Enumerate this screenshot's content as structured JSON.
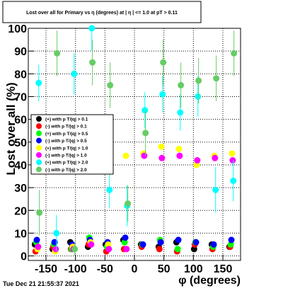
{
  "chart_data": {
    "type": "scatter",
    "title": "Lost over all for Primary vs η (degrees) at | η | <= 1.0 at pT > 0.11",
    "x_label": "φ (degrees)",
    "y_label": "Lost over all (%)",
    "timestamp": "Tue Dec 21 21:55:37 2021",
    "xlim": [
      -180,
      180
    ],
    "ylim": [
      -2,
      100
    ],
    "xticks": [
      -150,
      -100,
      -50,
      0,
      50,
      100,
      150
    ],
    "yticks": [
      0,
      10,
      20,
      30,
      40,
      50,
      60,
      70,
      80,
      90,
      100
    ],
    "grid": true,
    "legend": "left",
    "x": [
      -165,
      -135,
      -105,
      -75,
      -45,
      -15,
      15,
      45,
      75,
      105,
      135,
      165
    ],
    "series": [
      {
        "name": "(+) with p T/|q| > 0.1",
        "color": "#000000",
        "values": [
          5,
          3,
          6,
          4,
          5,
          7,
          5,
          4,
          6,
          3,
          5,
          4
        ]
      },
      {
        "name": "(-) with p T/|q| > 0.1",
        "color": "#ff0000",
        "values": [
          2,
          4,
          3,
          5,
          2,
          3,
          4,
          3,
          2,
          5,
          3,
          4
        ]
      },
      {
        "name": "(+) with p T/|q| > 0.5",
        "color": "#00ff00",
        "values": [
          6,
          5,
          3,
          8,
          4,
          6,
          5,
          7,
          3,
          6,
          4,
          5
        ]
      },
      {
        "name": "(-) with p T/|q| > 0.5",
        "color": "#0000ff",
        "values": [
          7,
          6,
          5,
          7,
          6,
          8,
          5,
          6,
          7,
          6,
          5,
          7
        ]
      },
      {
        "name": "(+) with p T/|q| > 1.0",
        "color": "#ffff00",
        "values": [
          3,
          2,
          4,
          6,
          5,
          44,
          45,
          48,
          47,
          40,
          44,
          45
        ]
      },
      {
        "name": "(-) with p T/|q| > 1.0",
        "color": "#ff00ff",
        "values": [
          4,
          3,
          3,
          5,
          3,
          3,
          44,
          43,
          44,
          42,
          43,
          42
        ]
      },
      {
        "name": "(+) with p T/|q| > 2.0",
        "color": "#00ffff",
        "values": [
          76,
          10,
          80,
          100,
          29,
          22,
          64,
          71,
          63,
          70,
          29,
          33
        ],
        "errors": [
          8,
          8,
          9,
          10,
          8,
          9,
          8,
          8,
          8,
          9,
          10,
          9
        ]
      },
      {
        "name": "(-) with p T/|q| > 2.0",
        "color": "#66cc66",
        "values": [
          19,
          89,
          3,
          85,
          75,
          23,
          54,
          85,
          75,
          77,
          78,
          89
        ],
        "errors": [
          10,
          10,
          3,
          10,
          10,
          8,
          10,
          10,
          10,
          10,
          10,
          10
        ]
      }
    ]
  }
}
